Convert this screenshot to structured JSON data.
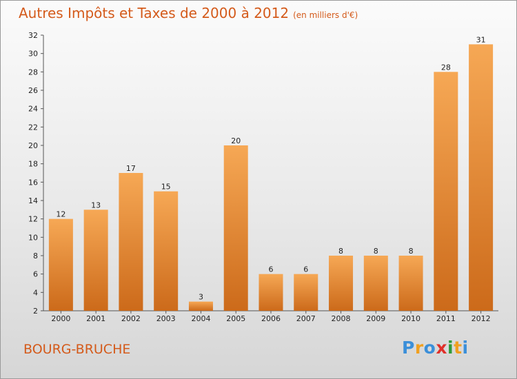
{
  "title": "Autres Impôts et Taxes de 2000 à 2012",
  "subtitle": "(en milliers d'€)",
  "commune": "BOURG-BRUCHE",
  "brand": {
    "letters": [
      "P",
      "r",
      "o",
      "x",
      "i",
      "t",
      "i"
    ],
    "colors": [
      "#3b8fd9",
      "#f0a020",
      "#3b8fd9",
      "#e0302a",
      "#2f9b3a",
      "#f0a020",
      "#3b8fd9"
    ]
  },
  "colors": {
    "bar_light": "#f6a855",
    "bar_dark": "#cc6a1a",
    "title": "#d45a1a"
  },
  "chart_data": {
    "type": "bar",
    "title": "Autres Impôts et Taxes de 2000 à 2012",
    "subtitle": "(en milliers d'€)",
    "categories": [
      "2000",
      "2001",
      "2002",
      "2003",
      "2004",
      "2005",
      "2006",
      "2007",
      "2008",
      "2009",
      "2010",
      "2011",
      "2012"
    ],
    "values": [
      12,
      13,
      17,
      15,
      3,
      20,
      6,
      6,
      8,
      8,
      8,
      28,
      31
    ],
    "ylim": [
      2,
      32
    ],
    "yticks": [
      2,
      4,
      6,
      8,
      10,
      12,
      14,
      16,
      18,
      20,
      22,
      24,
      26,
      28,
      30,
      32
    ],
    "grid": false,
    "legend": "none"
  }
}
